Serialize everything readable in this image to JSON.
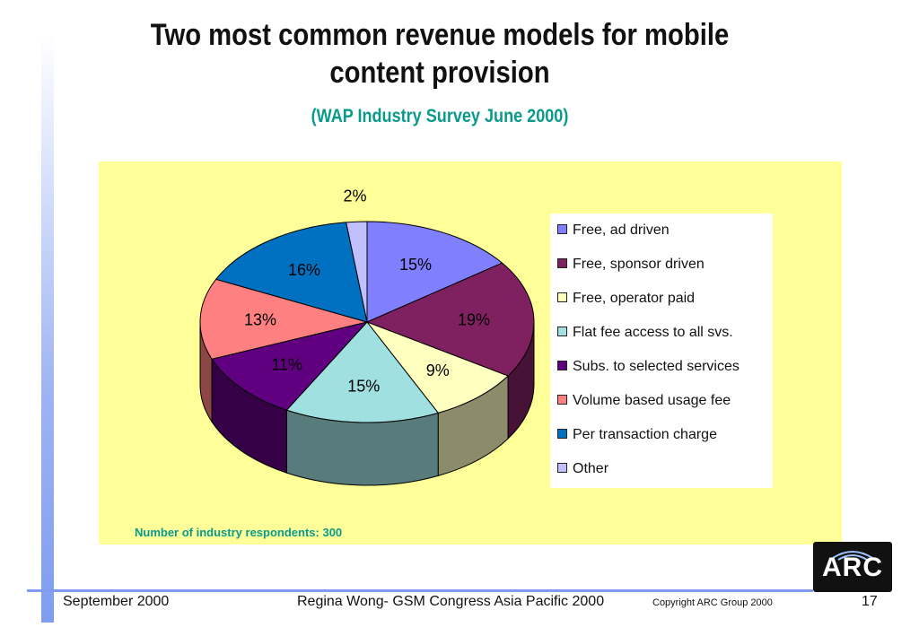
{
  "slide": {
    "title_line1": "Two most common revenue models for mobile",
    "title_line2": "content provision",
    "subtitle": "(WAP Industry Survey June 2000)",
    "note": "Number of industry respondents: 300"
  },
  "chart_data": {
    "type": "pie",
    "title": "",
    "slices": [
      {
        "name": "Free, ad driven",
        "value": 15,
        "label": "15%",
        "color": "#8080ff"
      },
      {
        "name": "Free, sponsor driven",
        "value": 19,
        "label": "19%",
        "color": "#7f2060"
      },
      {
        "name": "Free, operator paid",
        "value": 9,
        "label": "9%",
        "color": "#ffffc0"
      },
      {
        "name": "Flat fee access to all svs.",
        "value": 15,
        "label": "15%",
        "color": "#a0e0e0"
      },
      {
        "name": "Subs. to selected services",
        "value": 11,
        "label": "11%",
        "color": "#600080"
      },
      {
        "name": "Volume based usage fee",
        "value": 13,
        "label": "13%",
        "color": "#ff8080"
      },
      {
        "name": "Per transaction charge",
        "value": 16,
        "label": "16%",
        "color": "#0070c0"
      },
      {
        "name": "Other",
        "value": 2,
        "label": "2%",
        "color": "#c0c0ff"
      }
    ],
    "legend_position": "right"
  },
  "footer": {
    "date": "September 2000",
    "presenter": "Regina Wong- GSM Congress Asia Pacific 2000",
    "copyright": "Copyright ARC Group 2000",
    "page": "17",
    "logo_text": "ARC"
  }
}
